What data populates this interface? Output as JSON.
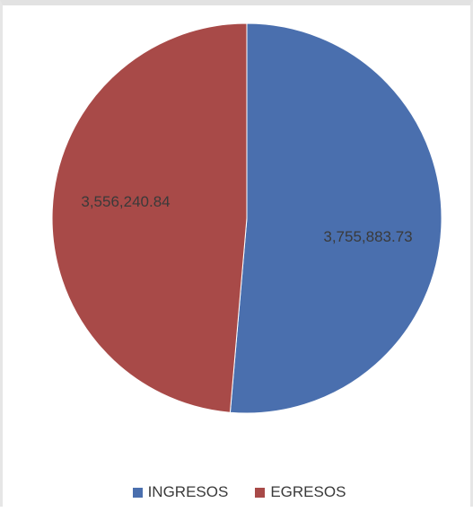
{
  "chart_data": {
    "type": "pie",
    "title": "",
    "slices": [
      {
        "name": "INGRESOS",
        "value": 3755883.73,
        "label": "3,755,883.73",
        "color": "#4a6fae"
      },
      {
        "name": "EGRESOS",
        "value": 3556240.84,
        "label": "3,556,240.84",
        "color": "#a84a48"
      }
    ],
    "start_angle_deg": 0,
    "direction": "clockwise",
    "legend_position": "bottom"
  }
}
